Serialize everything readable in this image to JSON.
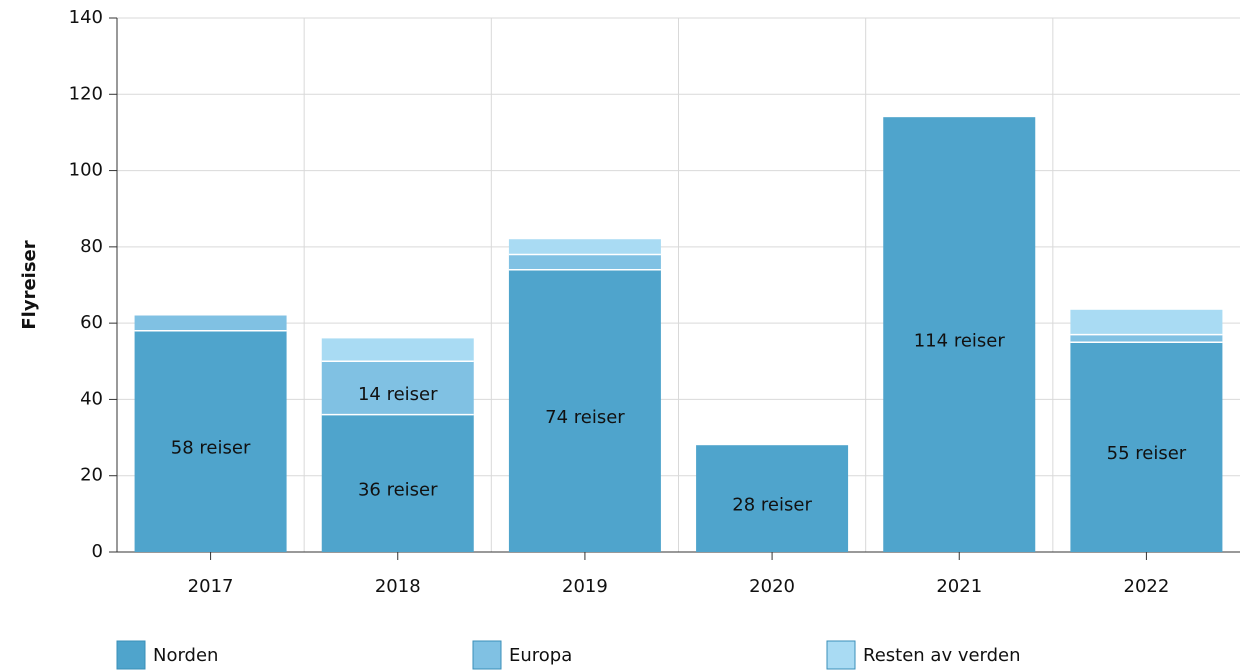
{
  "chart_data": {
    "type": "stacked_bar",
    "y_label": "Flyreiser",
    "categories": [
      "2017",
      "2018",
      "2019",
      "2020",
      "2021",
      "2022"
    ],
    "series": [
      {
        "name": "Norden",
        "color": "#4fa4cc",
        "values": [
          58,
          36,
          74,
          28,
          114,
          55
        ],
        "value_labels": [
          "58 reiser",
          "36 reiser",
          "74 reiser",
          "28 reiser",
          "114 reiser",
          "55 reiser"
        ]
      },
      {
        "name": "Europa",
        "color": "#80c1e3",
        "values": [
          4,
          14,
          4,
          0,
          0,
          2
        ],
        "value_labels": [
          null,
          "14 reiser",
          null,
          null,
          null,
          null
        ]
      },
      {
        "name": "Resten av verden",
        "color": "#a9dbf3",
        "values": [
          0,
          6,
          4,
          0,
          0,
          6.5
        ],
        "value_labels": [
          null,
          null,
          null,
          null,
          null,
          null
        ]
      }
    ],
    "ylim": [
      0,
      140
    ],
    "yticks": [
      0,
      20,
      40,
      60,
      80,
      100,
      120,
      140
    ],
    "grid": true
  }
}
